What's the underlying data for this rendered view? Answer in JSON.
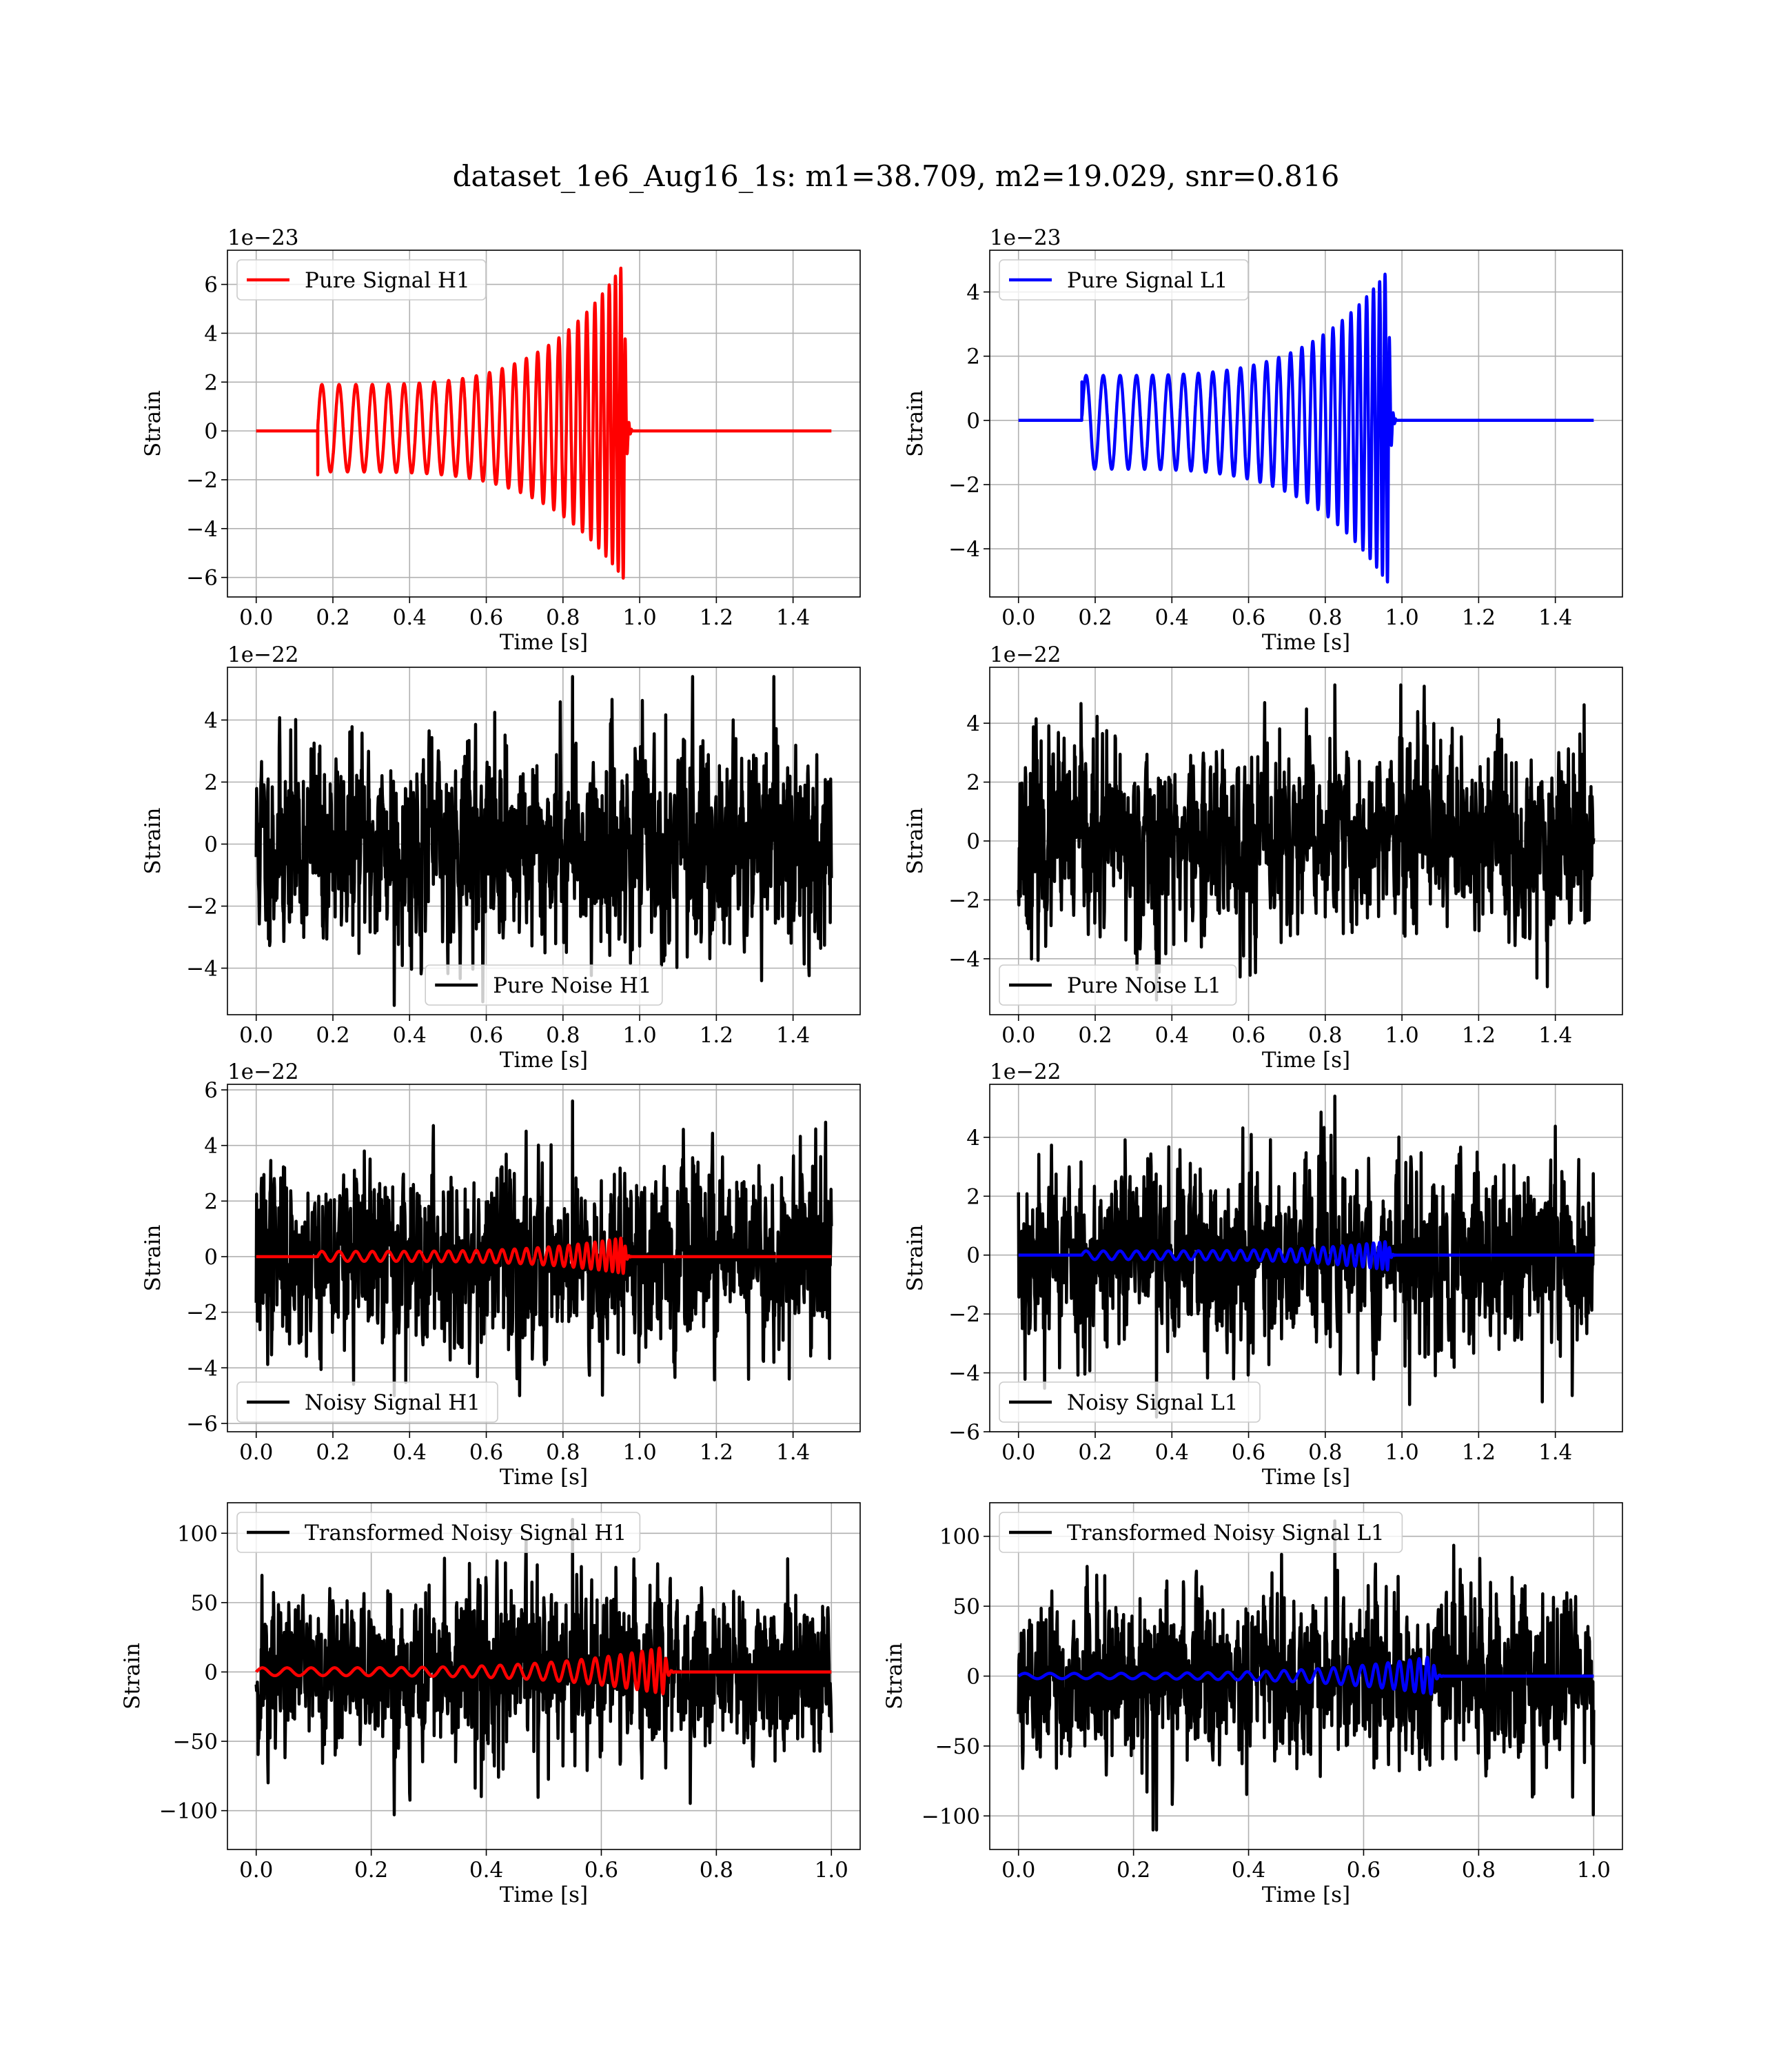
{
  "figure": {
    "title": "dataset_1e6_Aug16_1s: m1=38.709, m2=19.029, snr=0.816"
  },
  "chart_data": [
    {
      "id": "pure-signal-h1",
      "type": "line",
      "legend": "Pure Signal H1",
      "legend_loc": "upper-left",
      "xlabel": "Time [s]",
      "ylabel": "Strain",
      "offset_text": "1e−23",
      "xlim": [
        -0.075,
        1.575
      ],
      "ylim": [
        -6.8,
        7.4
      ],
      "xticks": [
        0.0,
        0.2,
        0.4,
        0.6,
        0.8,
        1.0,
        1.2,
        1.4
      ],
      "xtick_labels": [
        "0.0",
        "0.2",
        "0.4",
        "0.6",
        "0.8",
        "1.0",
        "1.2",
        "1.4"
      ],
      "yticks": [
        -6,
        -4,
        -2,
        0,
        2,
        4,
        6
      ],
      "ytick_labels": [
        "−6",
        "−4",
        "−2",
        "0",
        "2",
        "4",
        "6"
      ],
      "series": [
        {
          "name": "Pure Signal H1",
          "color": "#ff0000",
          "kind": "chirp",
          "t_start": 0.0,
          "t_end": 1.5,
          "t_onset": 0.16,
          "t_merger": 0.96,
          "amp_start": 1.9,
          "amp_peak": 6.9,
          "amp_peak_neg": -6.1,
          "n_cycles": 26,
          "initial_spike": -1.8
        }
      ]
    },
    {
      "id": "pure-signal-l1",
      "type": "line",
      "legend": "Pure Signal L1",
      "legend_loc": "upper-left",
      "xlabel": "Time [s]",
      "ylabel": "Strain",
      "offset_text": "1e−23",
      "xlim": [
        -0.075,
        1.575
      ],
      "ylim": [
        -5.5,
        5.3
      ],
      "xticks": [
        0.0,
        0.2,
        0.4,
        0.6,
        0.8,
        1.0,
        1.2,
        1.4
      ],
      "xtick_labels": [
        "0.0",
        "0.2",
        "0.4",
        "0.6",
        "0.8",
        "1.0",
        "1.2",
        "1.4"
      ],
      "yticks": [
        -4,
        -2,
        0,
        2,
        4
      ],
      "ytick_labels": [
        "−4",
        "−2",
        "0",
        "2",
        "4"
      ],
      "series": [
        {
          "name": "Pure Signal L1",
          "color": "#0000ff",
          "kind": "chirp",
          "t_start": 0.0,
          "t_end": 1.5,
          "t_onset": 0.165,
          "t_merger": 0.965,
          "amp_start": 1.4,
          "amp_peak": 4.7,
          "amp_peak_neg": -5.1,
          "n_cycles": 26,
          "initial_spike": 1.2
        }
      ]
    },
    {
      "id": "pure-noise-h1",
      "type": "line",
      "legend": "Pure Noise H1",
      "legend_loc": "lower-center",
      "xlabel": "Time [s]",
      "ylabel": "Strain",
      "offset_text": "1e−22",
      "xlim": [
        -0.075,
        1.575
      ],
      "ylim": [
        -5.5,
        5.7
      ],
      "xticks": [
        0.0,
        0.2,
        0.4,
        0.6,
        0.8,
        1.0,
        1.2,
        1.4
      ],
      "xtick_labels": [
        "0.0",
        "0.2",
        "0.4",
        "0.6",
        "0.8",
        "1.0",
        "1.2",
        "1.4"
      ],
      "yticks": [
        -4,
        -2,
        0,
        2,
        4
      ],
      "ytick_labels": [
        "−4",
        "−2",
        "0",
        "2",
        "4"
      ],
      "series": [
        {
          "name": "Pure Noise H1",
          "color": "#000000",
          "kind": "noise",
          "t_start": 0.0,
          "t_end": 1.5,
          "sigma": 1.6,
          "max": 5.4,
          "min": -5.2,
          "seed": 11
        }
      ]
    },
    {
      "id": "pure-noise-l1",
      "type": "line",
      "legend": "Pure Noise L1",
      "legend_loc": "lower-left",
      "xlabel": "Time [s]",
      "ylabel": "Strain",
      "offset_text": "1e−22",
      "xlim": [
        -0.075,
        1.575
      ],
      "ylim": [
        -5.9,
        5.9
      ],
      "xticks": [
        0.0,
        0.2,
        0.4,
        0.6,
        0.8,
        1.0,
        1.2,
        1.4
      ],
      "xtick_labels": [
        "0.0",
        "0.2",
        "0.4",
        "0.6",
        "0.8",
        "1.0",
        "1.2",
        "1.4"
      ],
      "yticks": [
        -4,
        -2,
        0,
        2,
        4
      ],
      "ytick_labels": [
        "−4",
        "−2",
        "0",
        "2",
        "4"
      ],
      "series": [
        {
          "name": "Pure Noise L1",
          "color": "#000000",
          "kind": "noise",
          "t_start": 0.0,
          "t_end": 1.5,
          "sigma": 1.6,
          "max": 5.3,
          "min": -5.4,
          "seed": 23
        }
      ]
    },
    {
      "id": "noisy-signal-h1",
      "type": "line",
      "legend": "Noisy Signal H1",
      "legend_loc": "lower-left",
      "xlabel": "Time [s]",
      "ylabel": "Strain",
      "offset_text": "1e−22",
      "xlim": [
        -0.075,
        1.575
      ],
      "ylim": [
        -6.3,
        6.2
      ],
      "xticks": [
        0.0,
        0.2,
        0.4,
        0.6,
        0.8,
        1.0,
        1.2,
        1.4
      ],
      "xtick_labels": [
        "0.0",
        "0.2",
        "0.4",
        "0.6",
        "0.8",
        "1.0",
        "1.2",
        "1.4"
      ],
      "yticks": [
        -6,
        -4,
        -2,
        0,
        2,
        4,
        6
      ],
      "ytick_labels": [
        "−6",
        "−4",
        "−2",
        "0",
        "2",
        "4",
        "6"
      ],
      "series": [
        {
          "name": "Noisy Signal H1",
          "color": "#000000",
          "kind": "noise",
          "t_start": 0.0,
          "t_end": 1.5,
          "sigma": 1.6,
          "max": 5.6,
          "min": -5.0,
          "seed": 37
        },
        {
          "name": "signal overlay",
          "color": "#ff0000",
          "kind": "chirp",
          "t_start": 0.0,
          "t_end": 1.5,
          "t_onset": 0.16,
          "t_merger": 0.96,
          "amp_start": 0.19,
          "amp_peak": 0.69,
          "amp_peak_neg": -0.61,
          "n_cycles": 26,
          "initial_spike": 0.0
        }
      ]
    },
    {
      "id": "noisy-signal-l1",
      "type": "line",
      "legend": "Noisy Signal L1",
      "legend_loc": "lower-left",
      "xlabel": "Time [s]",
      "ylabel": "Strain",
      "offset_text": "1e−22",
      "xlim": [
        -0.075,
        1.575
      ],
      "ylim": [
        -6.0,
        5.8
      ],
      "xticks": [
        0.0,
        0.2,
        0.4,
        0.6,
        0.8,
        1.0,
        1.2,
        1.4
      ],
      "xtick_labels": [
        "0.0",
        "0.2",
        "0.4",
        "0.6",
        "0.8",
        "1.0",
        "1.2",
        "1.4"
      ],
      "yticks": [
        -6,
        -4,
        -2,
        0,
        2,
        4
      ],
      "ytick_labels": [
        "−6",
        "−4",
        "−2",
        "0",
        "2",
        "4"
      ],
      "series": [
        {
          "name": "Noisy Signal L1",
          "color": "#000000",
          "kind": "noise",
          "t_start": 0.0,
          "t_end": 1.5,
          "sigma": 1.6,
          "max": 5.4,
          "min": -5.5,
          "seed": 53
        },
        {
          "name": "signal overlay",
          "color": "#0000ff",
          "kind": "chirp",
          "t_start": 0.0,
          "t_end": 1.5,
          "t_onset": 0.165,
          "t_merger": 0.965,
          "amp_start": 0.14,
          "amp_peak": 0.47,
          "amp_peak_neg": -0.51,
          "n_cycles": 26,
          "initial_spike": 0.0
        }
      ]
    },
    {
      "id": "transformed-noisy-signal-h1",
      "type": "line",
      "legend": "Transformed Noisy Signal H1",
      "legend_loc": "upper-left",
      "xlabel": "Time [s]",
      "ylabel": "Strain",
      "offset_text": "",
      "xlim": [
        -0.05,
        1.05
      ],
      "ylim": [
        -128,
        122
      ],
      "xticks": [
        0.0,
        0.2,
        0.4,
        0.6,
        0.8,
        1.0
      ],
      "xtick_labels": [
        "0.0",
        "0.2",
        "0.4",
        "0.6",
        "0.8",
        "1.0"
      ],
      "yticks": [
        -100,
        -50,
        0,
        50,
        100
      ],
      "ytick_labels": [
        "−100",
        "−50",
        "0",
        "50",
        "100"
      ],
      "series": [
        {
          "name": "Transformed Noisy Signal H1",
          "color": "#000000",
          "kind": "noise",
          "t_start": 0.0,
          "t_end": 1.0,
          "sigma": 30,
          "max": 110,
          "min": -103,
          "seed": 71
        },
        {
          "name": "signal overlay",
          "color": "#ff0000",
          "kind": "chirp",
          "t_start": 0.0,
          "t_end": 1.0,
          "t_onset": 0.0,
          "t_merger": 0.71,
          "amp_start": 3,
          "amp_peak": 18,
          "amp_peak_neg": -16,
          "n_cycles": 24,
          "initial_spike": 0.0
        }
      ]
    },
    {
      "id": "transformed-noisy-signal-l1",
      "type": "line",
      "legend": "Transformed Noisy Signal L1",
      "legend_loc": "upper-left",
      "xlabel": "Time [s]",
      "ylabel": "Strain",
      "offset_text": "",
      "xlim": [
        -0.05,
        1.05
      ],
      "ylim": [
        -124,
        124
      ],
      "xticks": [
        0.0,
        0.2,
        0.4,
        0.6,
        0.8,
        1.0
      ],
      "xtick_labels": [
        "0.0",
        "0.2",
        "0.4",
        "0.6",
        "0.8",
        "1.0"
      ],
      "yticks": [
        -100,
        -50,
        0,
        50,
        100
      ],
      "ytick_labels": [
        "−100",
        "−50",
        "0",
        "50",
        "100"
      ],
      "series": [
        {
          "name": "Transformed Noisy Signal L1",
          "color": "#000000",
          "kind": "noise",
          "t_start": 0.0,
          "t_end": 1.0,
          "sigma": 30,
          "max": 111,
          "min": -110,
          "seed": 89
        },
        {
          "name": "signal overlay",
          "color": "#0000ff",
          "kind": "chirp",
          "t_start": 0.0,
          "t_end": 1.0,
          "t_onset": 0.0,
          "t_merger": 0.72,
          "amp_start": 2,
          "amp_peak": 14,
          "amp_peak_neg": -13,
          "n_cycles": 24,
          "initial_spike": 0.0
        }
      ]
    }
  ]
}
